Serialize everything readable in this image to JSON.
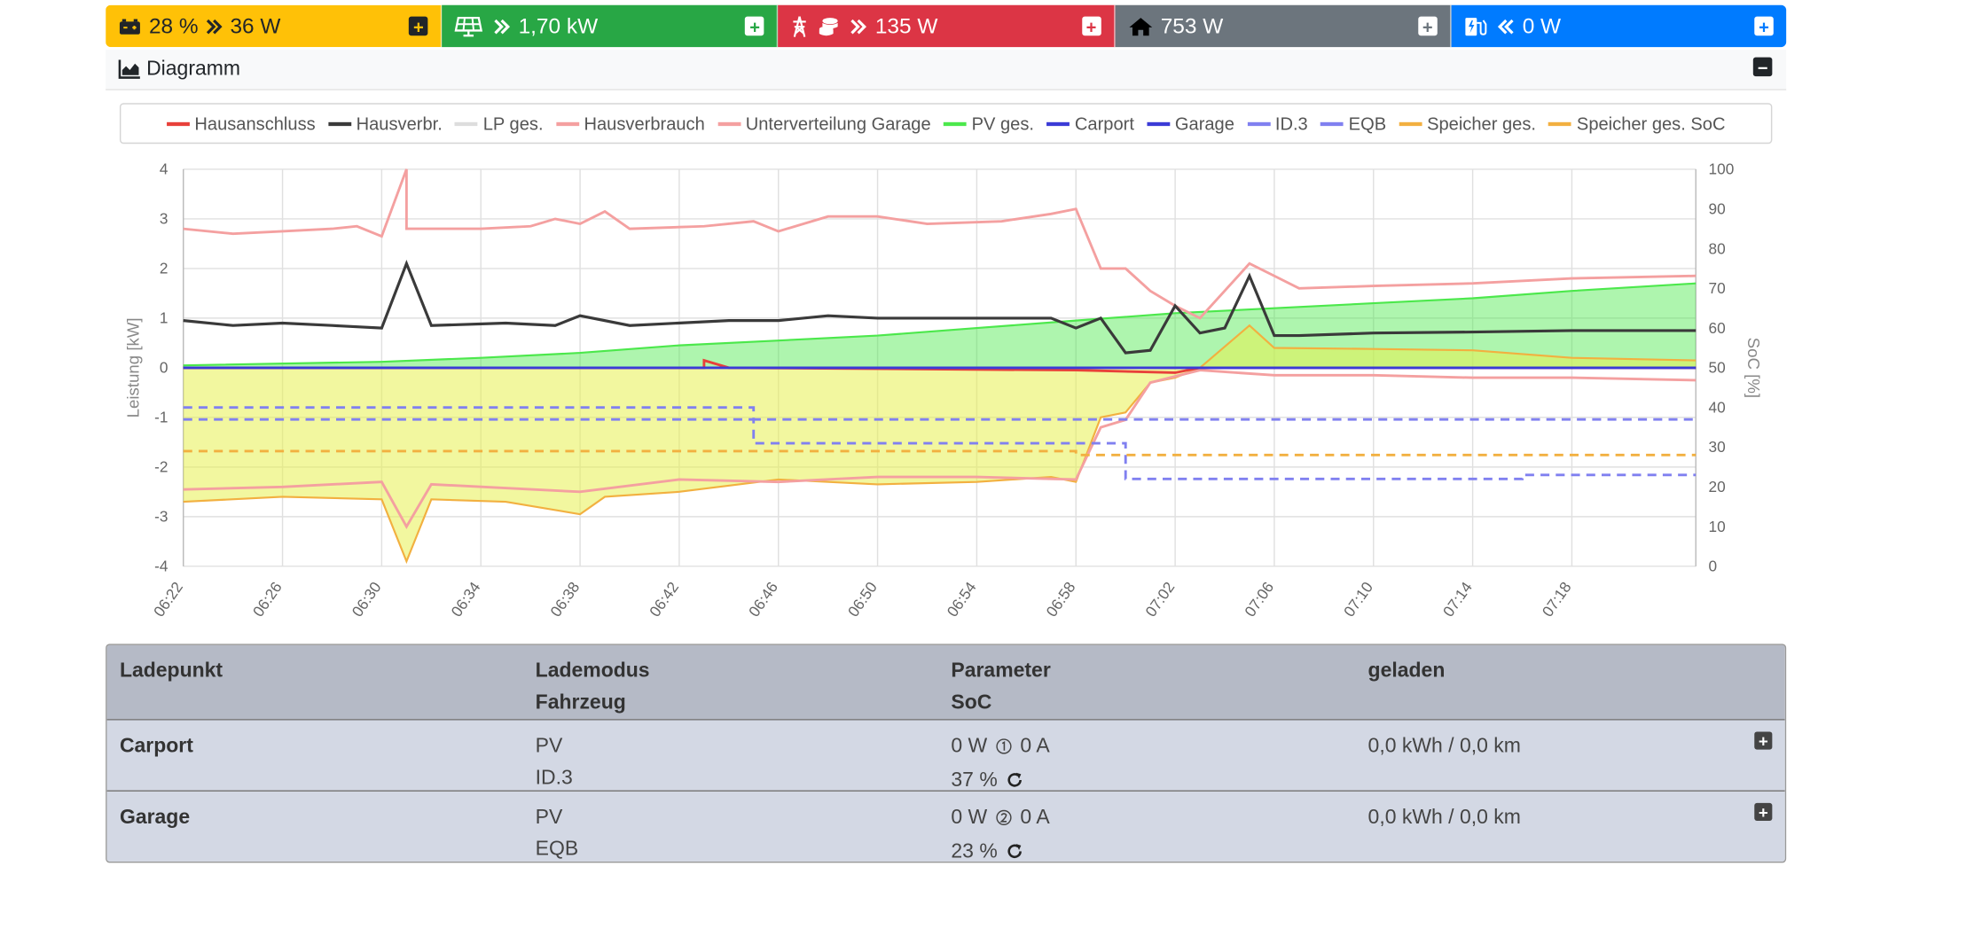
{
  "tiles": {
    "battery": {
      "soc": "28 %",
      "power": "36 W",
      "icon": "car-battery-icon",
      "color": "#ffc107"
    },
    "pv": {
      "power": "1,70 kW",
      "icon": "solar-panel-icon",
      "color": "#28a745"
    },
    "grid": {
      "power": "135 W",
      "icon": "power-grid-icon",
      "color": "#dc3545"
    },
    "home": {
      "power": "753 W",
      "icon": "home-icon",
      "color": "#6c757d"
    },
    "chargepoints": {
      "power": "0 W",
      "icon": "charging-station-icon",
      "color": "#007bff"
    }
  },
  "diagram": {
    "title": "Diagramm"
  },
  "legend": [
    {
      "label": "Hausanschluss",
      "color": "#e8403a"
    },
    {
      "label": "Hausverbr.",
      "color": "#3a3a3a"
    },
    {
      "label": "LP ges.",
      "color": "#dddddd"
    },
    {
      "label": "Hausverbrauch",
      "color": "#f4a0a0"
    },
    {
      "label": "Unterverteilung Garage",
      "color": "#f4a0a0"
    },
    {
      "label": "PV ges.",
      "color": "#4ce84c"
    },
    {
      "label": "Carport",
      "color": "#3b3bd6"
    },
    {
      "label": "Garage",
      "color": "#3b3bd6"
    },
    {
      "label": "ID.3",
      "color": "#8080f0"
    },
    {
      "label": "EQB",
      "color": "#8080f0"
    },
    {
      "label": "Speicher ges.",
      "color": "#f2b040"
    },
    {
      "label": "Speicher ges. SoC",
      "color": "#f2b040"
    }
  ],
  "chart_data": {
    "type": "line",
    "ylabel": "Leistung [kW]",
    "y2label": "SoC [%]",
    "ylim": [
      -4,
      4
    ],
    "y2lim": [
      0,
      100
    ],
    "yticks": [
      "4",
      "3",
      "2",
      "1",
      "0",
      "-1",
      "-2",
      "-3",
      "-4"
    ],
    "y2ticks": [
      "100",
      "90",
      "80",
      "70",
      "60",
      "50",
      "40",
      "30",
      "20",
      "10",
      "0"
    ],
    "xticks": [
      "06:22",
      "06:26",
      "06:30",
      "06:34",
      "06:38",
      "06:42",
      "06:46",
      "06:50",
      "06:54",
      "06:58",
      "07:02",
      "07:06",
      "07:10",
      "07:14",
      "07:18"
    ],
    "x_start": "06:22",
    "x_end": "07:23",
    "grid": true,
    "series": [
      {
        "name": "Unterverteilung Garage",
        "axis": "left",
        "style": "line",
        "color": "#f4a0a0",
        "points": [
          [
            "06:22",
            2.8
          ],
          [
            "06:24",
            2.7
          ],
          [
            "06:26",
            2.75
          ],
          [
            "06:28",
            2.8
          ],
          [
            "06:29",
            2.85
          ],
          [
            "06:30",
            2.65
          ],
          [
            "06:31",
            4.0
          ],
          [
            "06:31",
            2.8
          ],
          [
            "06:34",
            2.8
          ],
          [
            "06:36",
            2.85
          ],
          [
            "06:37",
            3.0
          ],
          [
            "06:38",
            2.9
          ],
          [
            "06:39",
            3.15
          ],
          [
            "06:40",
            2.8
          ],
          [
            "06:43",
            2.85
          ],
          [
            "06:45",
            2.95
          ],
          [
            "06:46",
            2.75
          ],
          [
            "06:48",
            3.05
          ],
          [
            "06:50",
            3.05
          ],
          [
            "06:52",
            2.9
          ],
          [
            "06:55",
            2.95
          ],
          [
            "06:57",
            3.1
          ],
          [
            "06:58",
            3.2
          ],
          [
            "06:59",
            2.0
          ],
          [
            "07:00",
            2.0
          ],
          [
            "07:01",
            1.55
          ],
          [
            "07:02",
            1.25
          ],
          [
            "07:03",
            1.0
          ],
          [
            "07:05",
            2.1
          ],
          [
            "07:06",
            1.85
          ],
          [
            "07:07",
            1.6
          ],
          [
            "07:10",
            1.65
          ],
          [
            "07:14",
            1.7
          ],
          [
            "07:18",
            1.8
          ],
          [
            "07:23",
            1.85
          ]
        ]
      },
      {
        "name": "Hausverbr.",
        "axis": "left",
        "style": "line",
        "color": "#3a3a3a",
        "points": [
          [
            "06:22",
            0.95
          ],
          [
            "06:24",
            0.85
          ],
          [
            "06:26",
            0.9
          ],
          [
            "06:28",
            0.85
          ],
          [
            "06:30",
            0.8
          ],
          [
            "06:31",
            2.1
          ],
          [
            "06:32",
            0.85
          ],
          [
            "06:35",
            0.9
          ],
          [
            "06:37",
            0.85
          ],
          [
            "06:38",
            1.05
          ],
          [
            "06:40",
            0.85
          ],
          [
            "06:44",
            0.95
          ],
          [
            "06:46",
            0.95
          ],
          [
            "06:48",
            1.05
          ],
          [
            "06:50",
            1.0
          ],
          [
            "06:54",
            1.0
          ],
          [
            "06:57",
            1.0
          ],
          [
            "06:58",
            0.8
          ],
          [
            "06:59",
            1.0
          ],
          [
            "07:00",
            0.3
          ],
          [
            "07:01",
            0.35
          ],
          [
            "07:02",
            1.25
          ],
          [
            "07:03",
            0.7
          ],
          [
            "07:04",
            0.8
          ],
          [
            "07:05",
            1.85
          ],
          [
            "07:06",
            0.65
          ],
          [
            "07:07",
            0.65
          ],
          [
            "07:10",
            0.7
          ],
          [
            "07:14",
            0.72
          ],
          [
            "07:18",
            0.75
          ],
          [
            "07:23",
            0.75
          ]
        ]
      },
      {
        "name": "PV ges.",
        "axis": "left",
        "style": "area",
        "color": "#4ce84c",
        "points": [
          [
            "06:22",
            0.05
          ],
          [
            "06:30",
            0.12
          ],
          [
            "06:34",
            0.2
          ],
          [
            "06:38",
            0.3
          ],
          [
            "06:42",
            0.45
          ],
          [
            "06:46",
            0.55
          ],
          [
            "06:50",
            0.65
          ],
          [
            "06:54",
            0.8
          ],
          [
            "06:58",
            0.95
          ],
          [
            "07:02",
            1.1
          ],
          [
            "07:06",
            1.2
          ],
          [
            "07:10",
            1.3
          ],
          [
            "07:14",
            1.4
          ],
          [
            "07:18",
            1.55
          ],
          [
            "07:23",
            1.7
          ]
        ]
      },
      {
        "name": "Speicher ges.",
        "axis": "left",
        "style": "area",
        "color": "#f2b040",
        "points": [
          [
            "06:22",
            -2.7
          ],
          [
            "06:26",
            -2.6
          ],
          [
            "06:30",
            -2.65
          ],
          [
            "06:31",
            -3.9
          ],
          [
            "06:32",
            -2.65
          ],
          [
            "06:35",
            -2.7
          ],
          [
            "06:38",
            -2.95
          ],
          [
            "06:39",
            -2.6
          ],
          [
            "06:42",
            -2.5
          ],
          [
            "06:46",
            -2.25
          ],
          [
            "06:50",
            -2.35
          ],
          [
            "06:54",
            -2.3
          ],
          [
            "06:57",
            -2.2
          ],
          [
            "06:58",
            -2.3
          ],
          [
            "06:59",
            -1.0
          ],
          [
            "07:00",
            -0.9
          ],
          [
            "07:01",
            -0.3
          ],
          [
            "07:02",
            -0.2
          ],
          [
            "07:03",
            0.0
          ],
          [
            "07:05",
            0.85
          ],
          [
            "07:06",
            0.4
          ],
          [
            "07:10",
            0.38
          ],
          [
            "07:14",
            0.35
          ],
          [
            "07:18",
            0.2
          ],
          [
            "07:23",
            0.15
          ]
        ]
      },
      {
        "name": "Hausanschluss",
        "axis": "left",
        "style": "line",
        "color": "#e8403a",
        "points": [
          [
            "06:22",
            0.0
          ],
          [
            "06:43",
            0.0
          ],
          [
            "06:43",
            0.15
          ],
          [
            "06:44",
            0.0
          ],
          [
            "06:58",
            -0.05
          ],
          [
            "07:02",
            -0.1
          ],
          [
            "07:03",
            0.0
          ],
          [
            "07:23",
            0.0
          ]
        ]
      },
      {
        "name": "Hausverbrauch",
        "axis": "left",
        "style": "line",
        "color": "#f4a0a0",
        "points": [
          [
            "06:22",
            -2.45
          ],
          [
            "06:26",
            -2.4
          ],
          [
            "06:30",
            -2.3
          ],
          [
            "06:31",
            -3.2
          ],
          [
            "06:32",
            -2.35
          ],
          [
            "06:38",
            -2.5
          ],
          [
            "06:42",
            -2.25
          ],
          [
            "06:46",
            -2.3
          ],
          [
            "06:50",
            -2.2
          ],
          [
            "06:54",
            -2.2
          ],
          [
            "06:58",
            -2.25
          ],
          [
            "06:59",
            -1.2
          ],
          [
            "07:00",
            -1.05
          ],
          [
            "07:01",
            -0.3
          ],
          [
            "07:03",
            -0.05
          ],
          [
            "07:06",
            -0.15
          ],
          [
            "07:10",
            -0.15
          ],
          [
            "07:14",
            -0.2
          ],
          [
            "07:18",
            -0.2
          ],
          [
            "07:23",
            -0.25
          ]
        ]
      },
      {
        "name": "Carport",
        "axis": "left",
        "style": "line",
        "color": "#3b3bd6",
        "points": [
          [
            "06:22",
            0.0
          ],
          [
            "07:23",
            0.0
          ]
        ]
      },
      {
        "name": "ID.3",
        "axis": "right",
        "style": "dashed",
        "color": "#8080f0",
        "points": [
          [
            "06:22",
            40
          ],
          [
            "06:45",
            40
          ],
          [
            "06:45",
            37
          ],
          [
            "07:23",
            37
          ]
        ]
      },
      {
        "name": "EQB",
        "axis": "right",
        "style": "dashed",
        "color": "#8080f0",
        "points": [
          [
            "06:22",
            37
          ],
          [
            "06:45",
            37
          ],
          [
            "06:45",
            31
          ],
          [
            "07:00",
            31
          ],
          [
            "07:00",
            22
          ],
          [
            "07:16",
            22
          ],
          [
            "07:16",
            23
          ],
          [
            "07:23",
            23
          ]
        ]
      },
      {
        "name": "Speicher ges. SoC",
        "axis": "right",
        "style": "dashed",
        "color": "#f2b040",
        "points": [
          [
            "06:22",
            29
          ],
          [
            "06:58",
            29
          ],
          [
            "06:58",
            28
          ],
          [
            "07:23",
            28
          ]
        ]
      }
    ]
  },
  "table": {
    "headers": {
      "ladepunkt": "Ladepunkt",
      "lademodus": "Lademodus",
      "fahrzeug": "Fahrzeug",
      "parameter": "Parameter",
      "soc": "SoC",
      "geladen": "geladen"
    },
    "rows": [
      {
        "name": "Carport",
        "mode": "PV",
        "vehicle": "ID.3",
        "power": "0 W",
        "current": "0 A",
        "soc": "37 %",
        "charged": "0,0 kWh / 0,0 km"
      },
      {
        "name": "Garage",
        "mode": "PV",
        "vehicle": "EQB",
        "power": "0 W",
        "current": "0 A",
        "soc": "23 %",
        "charged": "0,0 kWh / 0,0 km"
      }
    ]
  }
}
